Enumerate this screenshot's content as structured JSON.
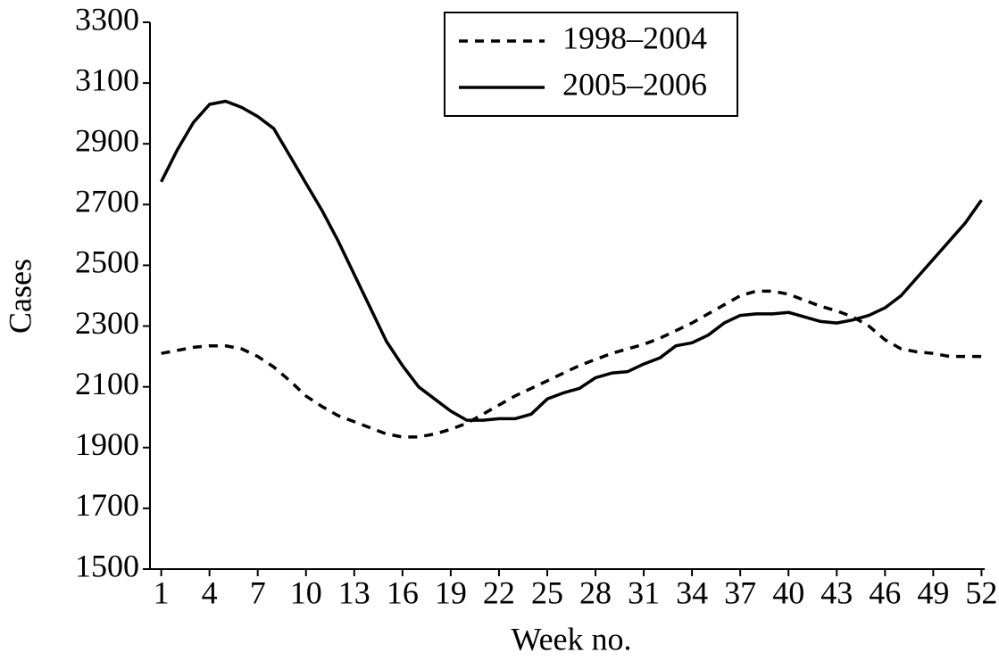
{
  "chart_data": {
    "type": "line",
    "x_label": "Week no.",
    "y_label": "Cases",
    "x": [
      1,
      2,
      3,
      4,
      5,
      6,
      7,
      8,
      9,
      10,
      11,
      12,
      13,
      14,
      15,
      16,
      17,
      18,
      19,
      20,
      21,
      22,
      23,
      24,
      25,
      26,
      27,
      28,
      29,
      30,
      31,
      32,
      33,
      34,
      35,
      36,
      37,
      38,
      39,
      40,
      41,
      42,
      43,
      44,
      45,
      46,
      47,
      48,
      49,
      50,
      51,
      52
    ],
    "series": [
      {
        "name": "1998–2004",
        "color": "#000000",
        "line_style": "dashed",
        "values": [
          2210,
          2220,
          2230,
          2235,
          2235,
          2225,
          2200,
          2165,
          2120,
          2070,
          2035,
          2005,
          1985,
          1965,
          1945,
          1935,
          1935,
          1945,
          1960,
          1980,
          2010,
          2040,
          2070,
          2095,
          2120,
          2145,
          2170,
          2190,
          2210,
          2225,
          2240,
          2260,
          2285,
          2310,
          2340,
          2370,
          2400,
          2415,
          2415,
          2405,
          2385,
          2365,
          2350,
          2330,
          2300,
          2255,
          2225,
          2215,
          2210,
          2200,
          2200,
          2200
        ]
      },
      {
        "name": "2005–2006",
        "color": "#000000",
        "line_style": "solid",
        "values": [
          2775,
          2880,
          2970,
          3030,
          3040,
          3020,
          2990,
          2950,
          2860,
          2770,
          2680,
          2580,
          2470,
          2360,
          2250,
          2170,
          2100,
          2060,
          2020,
          1990,
          1990,
          1995,
          1995,
          2010,
          2060,
          2080,
          2095,
          2130,
          2145,
          2150,
          2175,
          2195,
          2235,
          2245,
          2270,
          2310,
          2335,
          2340,
          2340,
          2345,
          2330,
          2315,
          2310,
          2320,
          2335,
          2360,
          2400,
          2460,
          2520,
          2580,
          2640,
          2715
        ]
      }
    ],
    "xlim": [
      0.3,
      52.2
    ],
    "xticks": [
      1,
      4,
      7,
      10,
      13,
      16,
      19,
      22,
      25,
      28,
      31,
      34,
      37,
      40,
      43,
      46,
      49,
      52
    ],
    "ylim": [
      1500,
      3300
    ],
    "yticks": [
      1500,
      1700,
      1900,
      2100,
      2300,
      2500,
      2700,
      2900,
      3100,
      3300
    ],
    "legend": "top-center"
  }
}
